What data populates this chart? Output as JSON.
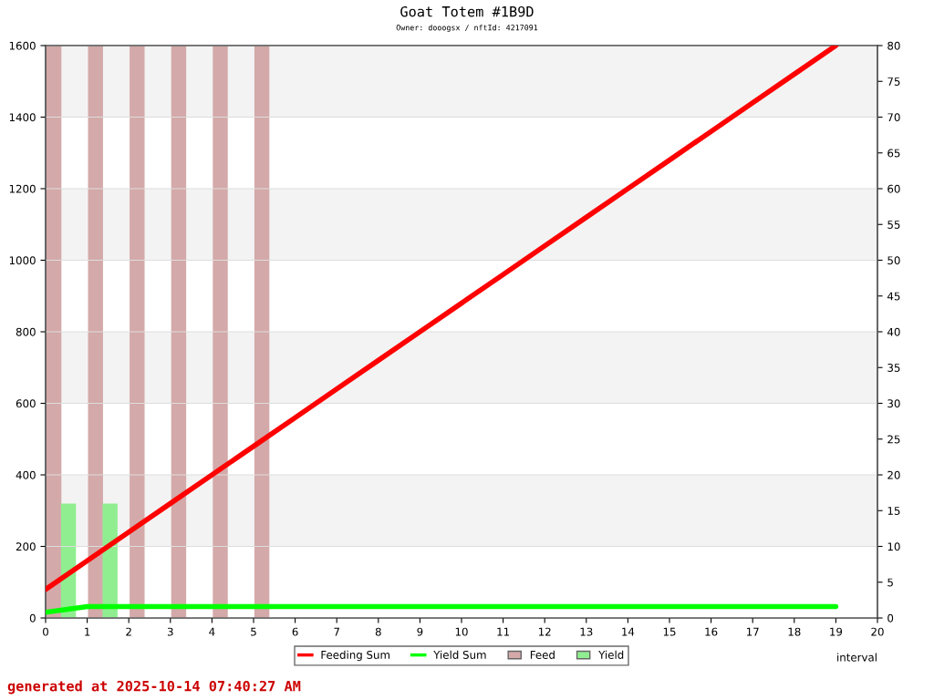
{
  "chart_data": {
    "type": "line",
    "title": "Goat Totem #1B9D",
    "subtitle": "Owner: dooogsx / nftId: 4217091",
    "xlabel": "interval",
    "annotations": [
      "generated at 2025-10-14 07:40:27 AM"
    ],
    "xlim": [
      0,
      20
    ],
    "xticks": [
      0,
      1,
      2,
      3,
      4,
      5,
      6,
      7,
      8,
      9,
      10,
      11,
      12,
      13,
      14,
      15,
      16,
      17,
      18,
      19,
      20
    ],
    "ylim": [
      0,
      1600
    ],
    "yticks": [
      0,
      200,
      400,
      600,
      800,
      1000,
      1200,
      1400,
      1600
    ],
    "y2lim": [
      0,
      80
    ],
    "y2ticks": [
      0,
      5,
      10,
      15,
      20,
      25,
      30,
      35,
      40,
      45,
      50,
      55,
      60,
      65,
      70,
      75,
      80
    ],
    "grid": "y",
    "legend": "bottom",
    "marker": "none",
    "line_style": "solid",
    "series": [
      {
        "name": "Feeding Sum",
        "color": "#ff0000",
        "x": [
          0,
          1,
          2,
          3,
          4,
          5,
          6,
          7,
          8,
          9,
          10,
          11,
          12,
          13,
          14,
          15,
          16,
          17,
          18,
          19
        ],
        "values": [
          80,
          160,
          240,
          320,
          400,
          480,
          560,
          640,
          720,
          800,
          880,
          960,
          1040,
          1120,
          1200,
          1280,
          1360,
          1440,
          1520,
          1600
        ]
      },
      {
        "name": "Yield Sum",
        "color": "#00ff00",
        "x": [
          0,
          1,
          2,
          3,
          4,
          5,
          6,
          7,
          8,
          9,
          10,
          11,
          12,
          13,
          14,
          15,
          16,
          17,
          18,
          19
        ],
        "values": [
          16,
          32,
          32,
          32,
          32,
          32,
          32,
          32,
          32,
          32,
          32,
          32,
          32,
          32,
          32,
          32,
          32,
          32,
          32,
          32
        ]
      },
      {
        "name": "Feed",
        "type": "bar",
        "axis": "y2",
        "color": "#d4a9a9",
        "x": [
          0.2,
          1.2,
          2.2,
          3.2,
          4.2,
          5.2
        ],
        "values": [
          80,
          80,
          80,
          80,
          80,
          80
        ]
      },
      {
        "name": "Yield",
        "type": "bar",
        "axis": "y2",
        "color": "#90ee90",
        "x": [
          0.55,
          1.55
        ],
        "values": [
          16,
          16
        ]
      }
    ]
  }
}
